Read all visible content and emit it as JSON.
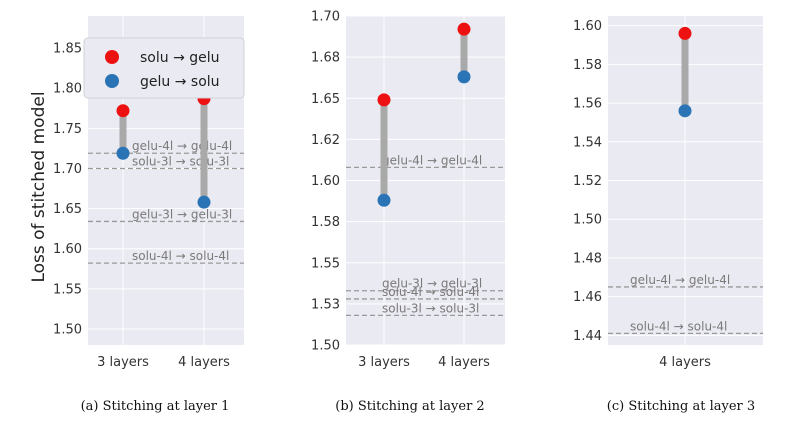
{
  "colors": {
    "panel_bg": "#eaeaf2",
    "grid": "#ffffff",
    "stem": "#a9a9a9",
    "ref_line": "#9a9a9a",
    "solu_to_gelu": "#ee1111",
    "gelu_to_solu": "#2a73b5"
  },
  "legend": {
    "solu_to_gelu": "solu → gelu",
    "gelu_to_solu": "gelu → solu"
  },
  "ylabel": "Loss of stitched model",
  "chart_data": [
    {
      "type": "scatter",
      "caption": "(a) Stitching at layer 1",
      "categories": [
        "3 layers",
        "4 layers"
      ],
      "ylim": [
        1.48,
        1.89
      ],
      "yticks": [
        "1.50",
        "1.55",
        "1.60",
        "1.65",
        "1.70",
        "1.75",
        "1.80",
        "1.85"
      ],
      "ytick_values": [
        1.5,
        1.55,
        1.6,
        1.65,
        1.7,
        1.75,
        1.8,
        1.85
      ],
      "series": [
        {
          "name": "solu → gelu",
          "values": [
            1.772,
            1.787
          ]
        },
        {
          "name": "gelu → solu",
          "values": [
            1.719,
            1.658
          ]
        }
      ],
      "reference_lines": [
        {
          "label": "gelu-4l → gelu-4l",
          "value": 1.719
        },
        {
          "label": "solu-3l → solu-3l",
          "value": 1.7
        },
        {
          "label": "gelu-3l → gelu-3l",
          "value": 1.634
        },
        {
          "label": "solu-4l → solu-4l",
          "value": 1.582
        }
      ],
      "legend": "top-left",
      "grid": true
    },
    {
      "type": "scatter",
      "caption": "(b) Stitching at layer 2",
      "categories": [
        "3 layers",
        "4 layers"
      ],
      "ylim": [
        1.5,
        1.7
      ],
      "yticks": [
        "1.50",
        "1.53",
        "1.55",
        "1.58",
        "1.60",
        "1.62",
        "1.65",
        "1.68",
        "1.70"
      ],
      "ytick_values": [
        1.5,
        1.525,
        1.55,
        1.575,
        1.6,
        1.625,
        1.65,
        1.675,
        1.7
      ],
      "series": [
        {
          "name": "solu → gelu",
          "values": [
            1.649,
            1.692
          ]
        },
        {
          "name": "gelu → solu",
          "values": [
            1.588,
            1.663
          ]
        }
      ],
      "reference_lines": [
        {
          "label": "gelu-4l → gelu-4l",
          "value": 1.608
        },
        {
          "label": "gelu-3l → gelu-3l",
          "value": 1.533
        },
        {
          "label": "solu-4l → solu-4l",
          "value": 1.528
        },
        {
          "label": "solu-3l → solu-3l",
          "value": 1.518
        }
      ],
      "grid": true
    },
    {
      "type": "scatter",
      "caption": "(c) Stitching at layer 3",
      "categories": [
        "4 layers"
      ],
      "ylim": [
        1.435,
        1.605
      ],
      "yticks": [
        "1.44",
        "1.46",
        "1.48",
        "1.50",
        "1.52",
        "1.54",
        "1.56",
        "1.58",
        "1.60"
      ],
      "ytick_values": [
        1.44,
        1.46,
        1.48,
        1.5,
        1.52,
        1.54,
        1.56,
        1.58,
        1.6
      ],
      "series": [
        {
          "name": "solu → gelu",
          "values": [
            1.596
          ]
        },
        {
          "name": "gelu → solu",
          "values": [
            1.556
          ]
        }
      ],
      "reference_lines": [
        {
          "label": "gelu-4l → gelu-4l",
          "value": 1.465
        },
        {
          "label": "solu-4l → solu-4l",
          "value": 1.441
        }
      ],
      "grid": true
    }
  ]
}
